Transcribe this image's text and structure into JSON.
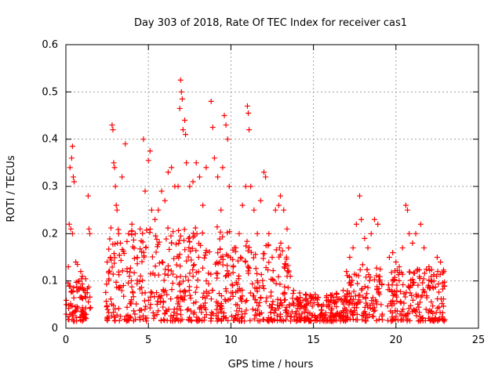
{
  "chart_data": {
    "type": "scatter",
    "title": "Day 303 of 2018, Rate Of TEC Index for receiver cas1",
    "xlabel": "GPS time / hours",
    "ylabel": "ROTI / TECUs",
    "xlim": [
      0,
      25
    ],
    "ylim": [
      0,
      0.6
    ],
    "xticks": [
      0,
      5,
      10,
      15,
      20,
      25
    ],
    "yticks": [
      0,
      0.1,
      0.2,
      0.3,
      0.4,
      0.5,
      0.6
    ],
    "grid": true,
    "marker": "+",
    "color": "#ff0000",
    "series": [
      {
        "name": "ROTI",
        "points": [
          [
            0.15,
            0.13
          ],
          [
            0.2,
            0.22
          ],
          [
            0.25,
            0.34
          ],
          [
            0.35,
            0.36
          ],
          [
            0.4,
            0.385
          ],
          [
            0.45,
            0.32
          ],
          [
            0.5,
            0.31
          ],
          [
            0.3,
            0.21
          ],
          [
            0.4,
            0.2
          ],
          [
            0.6,
            0.14
          ],
          [
            0.7,
            0.135
          ],
          [
            0.8,
            0.1
          ],
          [
            0.9,
            0.12
          ],
          [
            1.0,
            0.11
          ],
          [
            1.1,
            0.08
          ],
          [
            1.2,
            0.075
          ],
          [
            1.4,
            0.21
          ],
          [
            1.45,
            0.2
          ],
          [
            1.35,
            0.28
          ],
          [
            1.3,
            0.075
          ],
          [
            2.5,
            0.14
          ],
          [
            2.6,
            0.12
          ],
          [
            2.7,
            0.15
          ],
          [
            2.8,
            0.43
          ],
          [
            2.85,
            0.42
          ],
          [
            2.9,
            0.35
          ],
          [
            2.95,
            0.34
          ],
          [
            3.0,
            0.3
          ],
          [
            3.05,
            0.26
          ],
          [
            3.1,
            0.25
          ],
          [
            3.2,
            0.2
          ],
          [
            3.3,
            0.18
          ],
          [
            3.4,
            0.32
          ],
          [
            3.6,
            0.39
          ],
          [
            3.8,
            0.2
          ],
          [
            4.0,
            0.22
          ],
          [
            4.2,
            0.2
          ],
          [
            4.5,
            0.21
          ],
          [
            4.7,
            0.4
          ],
          [
            4.8,
            0.29
          ],
          [
            5.0,
            0.355
          ],
          [
            5.1,
            0.375
          ],
          [
            5.2,
            0.25
          ],
          [
            5.4,
            0.23
          ],
          [
            5.6,
            0.25
          ],
          [
            5.8,
            0.29
          ],
          [
            6.0,
            0.27
          ],
          [
            6.2,
            0.33
          ],
          [
            6.4,
            0.34
          ],
          [
            6.6,
            0.3
          ],
          [
            6.8,
            0.3
          ],
          [
            6.9,
            0.465
          ],
          [
            7.0,
            0.5
          ],
          [
            6.95,
            0.525
          ],
          [
            7.05,
            0.485
          ],
          [
            7.2,
            0.44
          ],
          [
            7.1,
            0.42
          ],
          [
            7.25,
            0.41
          ],
          [
            7.3,
            0.35
          ],
          [
            7.5,
            0.3
          ],
          [
            7.7,
            0.31
          ],
          [
            7.9,
            0.35
          ],
          [
            8.1,
            0.32
          ],
          [
            8.3,
            0.26
          ],
          [
            8.5,
            0.34
          ],
          [
            8.8,
            0.48
          ],
          [
            8.9,
            0.425
          ],
          [
            9.0,
            0.36
          ],
          [
            9.2,
            0.32
          ],
          [
            9.4,
            0.25
          ],
          [
            9.5,
            0.34
          ],
          [
            9.6,
            0.45
          ],
          [
            9.7,
            0.43
          ],
          [
            9.8,
            0.4
          ],
          [
            9.9,
            0.3
          ],
          [
            10.1,
            0.09
          ],
          [
            10.3,
            0.17
          ],
          [
            10.5,
            0.2
          ],
          [
            10.7,
            0.26
          ],
          [
            10.9,
            0.3
          ],
          [
            11.0,
            0.47
          ],
          [
            11.05,
            0.455
          ],
          [
            11.1,
            0.42
          ],
          [
            11.2,
            0.3
          ],
          [
            11.4,
            0.25
          ],
          [
            11.6,
            0.2
          ],
          [
            11.8,
            0.27
          ],
          [
            12.0,
            0.33
          ],
          [
            12.1,
            0.32
          ],
          [
            12.3,
            0.2
          ],
          [
            12.5,
            0.15
          ],
          [
            12.7,
            0.25
          ],
          [
            12.9,
            0.26
          ],
          [
            13.0,
            0.28
          ],
          [
            13.2,
            0.25
          ],
          [
            13.4,
            0.21
          ],
          [
            13.6,
            0.11
          ],
          [
            13.8,
            0.08
          ],
          [
            14.0,
            0.06
          ],
          [
            14.2,
            0.065
          ],
          [
            14.5,
            0.06
          ],
          [
            14.8,
            0.07
          ],
          [
            15.0,
            0.065
          ],
          [
            15.3,
            0.065
          ],
          [
            15.6,
            0.05
          ],
          [
            15.9,
            0.06
          ],
          [
            16.2,
            0.065
          ],
          [
            16.5,
            0.06
          ],
          [
            16.8,
            0.08
          ],
          [
            17.0,
            0.12
          ],
          [
            17.2,
            0.15
          ],
          [
            17.4,
            0.17
          ],
          [
            17.6,
            0.22
          ],
          [
            17.8,
            0.28
          ],
          [
            17.9,
            0.23
          ],
          [
            18.1,
            0.19
          ],
          [
            18.3,
            0.17
          ],
          [
            18.5,
            0.2
          ],
          [
            18.7,
            0.23
          ],
          [
            18.9,
            0.22
          ],
          [
            19.1,
            0.05
          ],
          [
            19.6,
            0.15
          ],
          [
            19.8,
            0.16
          ],
          [
            20.0,
            0.14
          ],
          [
            20.2,
            0.13
          ],
          [
            20.4,
            0.17
          ],
          [
            20.6,
            0.26
          ],
          [
            20.7,
            0.25
          ],
          [
            20.8,
            0.2
          ],
          [
            21.0,
            0.18
          ],
          [
            21.2,
            0.2
          ],
          [
            21.5,
            0.22
          ],
          [
            21.7,
            0.17
          ],
          [
            22.0,
            0.13
          ],
          [
            22.3,
            0.1
          ],
          [
            22.5,
            0.15
          ],
          [
            22.7,
            0.14
          ],
          [
            22.9,
            0.12
          ]
        ]
      }
    ]
  }
}
